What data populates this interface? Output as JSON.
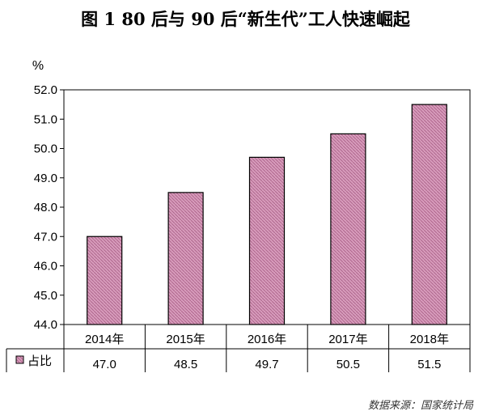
{
  "title": "图 1 80 后与 90 后“新生代”工人快速崛起",
  "source": "数据来源：国家统计局",
  "chart_data": {
    "type": "bar",
    "ylabel": "%",
    "categories": [
      "2014年",
      "2015年",
      "2016年",
      "2017年",
      "2018年"
    ],
    "series": [
      {
        "name": "占比",
        "values": [
          47.0,
          48.5,
          49.7,
          50.5,
          51.5
        ],
        "labels": [
          "47.0",
          "48.5",
          "49.7",
          "50.5",
          "51.5"
        ]
      }
    ],
    "ylim": [
      44.0,
      52.0
    ],
    "yticks": [
      "44.0",
      "45.0",
      "46.0",
      "47.0",
      "48.0",
      "49.0",
      "50.0",
      "51.0",
      "52.0"
    ],
    "grid": false,
    "legend": "data-table-left",
    "bar_color": "#d79bbb",
    "bar_stroke": "#000000"
  }
}
